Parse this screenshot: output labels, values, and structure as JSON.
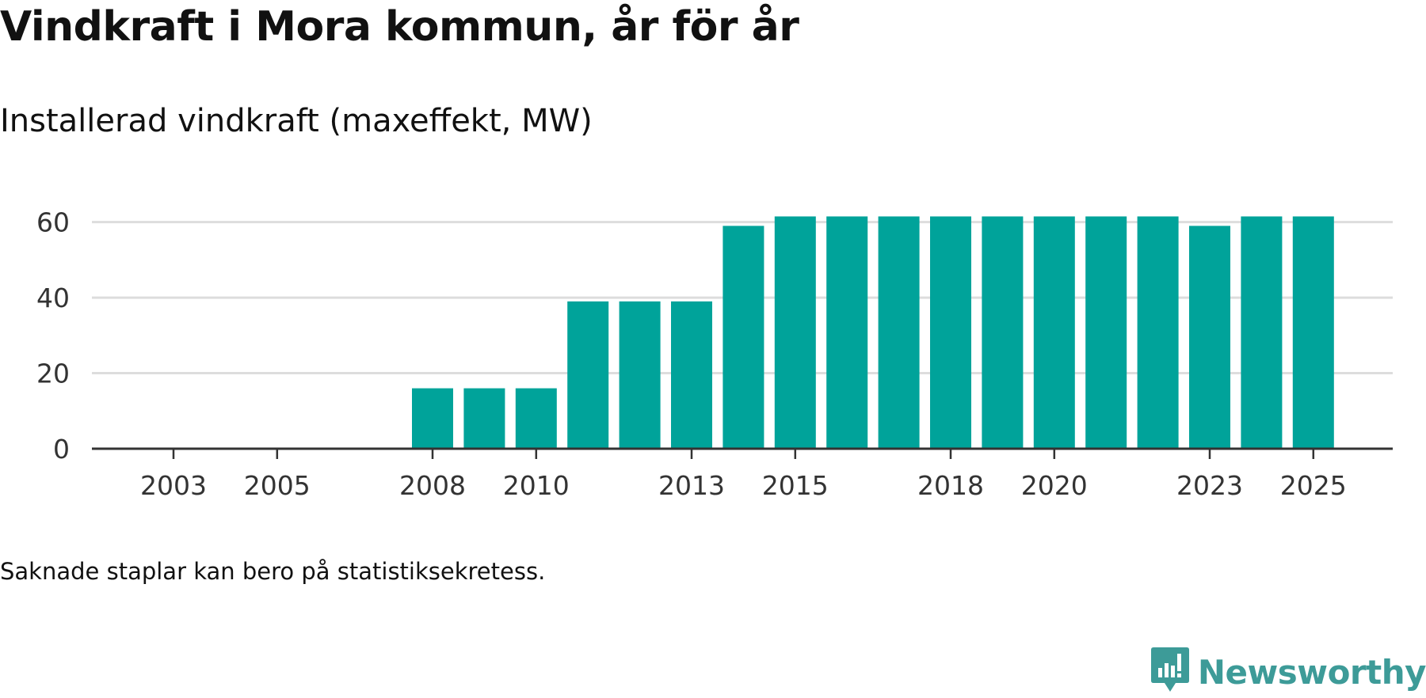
{
  "header": {
    "title": "Vindkraft i Mora kommun, år för år",
    "subtitle": "Installerad vindkraft (maxeffekt, MW)"
  },
  "footnote": "Saknade staplar kan bero på statistiksekretess.",
  "brand": {
    "name": "Newsworthy",
    "icon": "newsworthy-logo-icon"
  },
  "colors": {
    "bar": "#00a39a",
    "grid": "#dddddd",
    "axis": "#333333",
    "brand": "#3d9b98"
  },
  "chart_data": {
    "type": "bar",
    "title": "Vindkraft i Mora kommun, år för år",
    "subtitle": "Installerad vindkraft (maxeffekt, MW)",
    "xlabel": "",
    "ylabel": "Installerad vindkraft (maxeffekt, MW)",
    "categories": [
      2003,
      2004,
      2005,
      2006,
      2007,
      2008,
      2009,
      2010,
      2011,
      2012,
      2013,
      2014,
      2015,
      2016,
      2017,
      2018,
      2019,
      2020,
      2021,
      2022,
      2023,
      2024,
      2025
    ],
    "values": [
      null,
      null,
      null,
      null,
      null,
      16,
      16,
      16,
      39,
      39,
      39,
      59,
      61.5,
      61.5,
      61.5,
      61.5,
      61.5,
      61.5,
      61.5,
      61.5,
      59,
      61.5,
      61.5
    ],
    "x_tick_labels": [
      "2003",
      "2005",
      "2008",
      "2010",
      "2013",
      "2015",
      "2018",
      "2020",
      "2023",
      "2025"
    ],
    "y_ticks": [
      0,
      20,
      40,
      60
    ],
    "ylim": [
      0,
      66
    ],
    "grid": true,
    "legend": "none"
  }
}
